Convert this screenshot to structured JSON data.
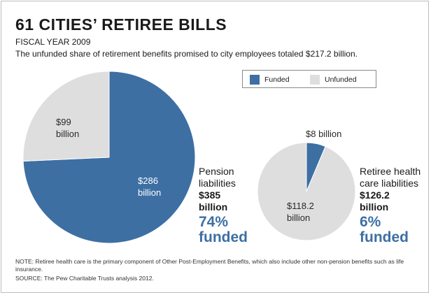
{
  "title": "61 CITIES’ RETIREE BILLS",
  "subtitle": "FISCAL YEAR 2009",
  "description": "The unfunded share of retirement benefits promised to city employees totaled $217.2 billion.",
  "legend": {
    "funded": "Funded",
    "unfunded": "Unfunded"
  },
  "colors": {
    "funded": "#3d6fa3",
    "unfunded": "#dedede"
  },
  "charts": {
    "pension": {
      "funded_label": [
        "$286",
        "billion"
      ],
      "unfunded_label": [
        "$99",
        "billion"
      ],
      "name": [
        "Pension",
        "liabilities"
      ],
      "total": [
        "$385",
        "billion"
      ],
      "pct": [
        "74%",
        "funded"
      ]
    },
    "health": {
      "funded_label": "$8 billion",
      "unfunded_label": [
        "$118.2",
        "billion"
      ],
      "name": [
        "Retiree health",
        "care liabilities"
      ],
      "total": [
        "$126.2",
        "billion"
      ],
      "pct": [
        "6%",
        "funded"
      ]
    }
  },
  "note": "NOTE: Retiree health care is the primary component of Other Post-Employment Benefits, which also include other non-pension benefits such as life insurance.",
  "source": "SOURCE: The Pew Charitable Trusts analysis 2012.",
  "chart_data": [
    {
      "type": "pie",
      "title": "Pension liabilities",
      "total": 385,
      "unit": "billion USD",
      "percent_funded": 74,
      "slices": [
        {
          "name": "Funded",
          "value": 286
        },
        {
          "name": "Unfunded",
          "value": 99
        }
      ]
    },
    {
      "type": "pie",
      "title": "Retiree health care liabilities",
      "total": 126.2,
      "unit": "billion USD",
      "percent_funded": 6,
      "slices": [
        {
          "name": "Funded",
          "value": 8
        },
        {
          "name": "Unfunded",
          "value": 118.2
        }
      ]
    }
  ]
}
